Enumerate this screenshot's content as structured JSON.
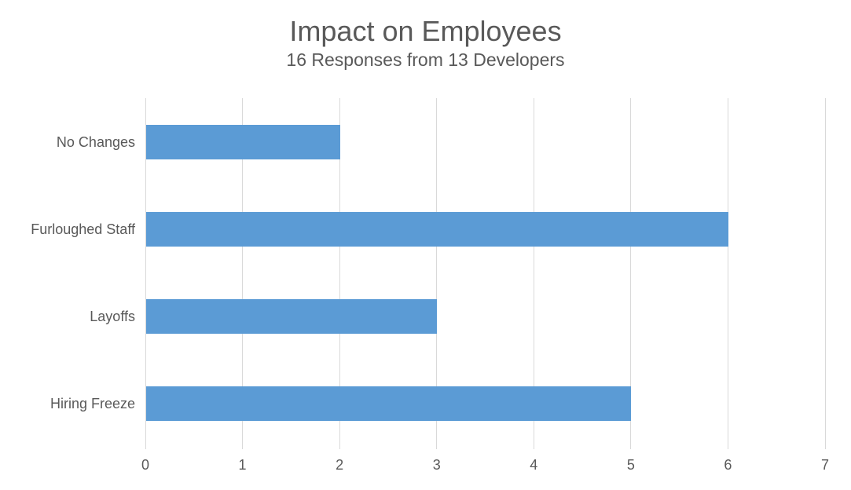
{
  "chart_data": {
    "type": "bar",
    "orientation": "horizontal",
    "title": "Impact on Employees",
    "subtitle": "16 Responses from 13 Developers",
    "categories": [
      "No Changes",
      "Furloughed Staff",
      "Layoffs",
      "Hiring Freeze"
    ],
    "values": [
      2,
      6,
      3,
      5
    ],
    "xlabel": "",
    "ylabel": "",
    "xlim": [
      0,
      7
    ],
    "x_ticks": [
      "0",
      "1",
      "2",
      "3",
      "4",
      "5",
      "6",
      "7"
    ],
    "grid": true,
    "legend": false,
    "colors": {
      "bar": "#5B9BD5",
      "grid": "#D9D9D9",
      "text": "#595959",
      "background": "#FFFFFF"
    }
  }
}
